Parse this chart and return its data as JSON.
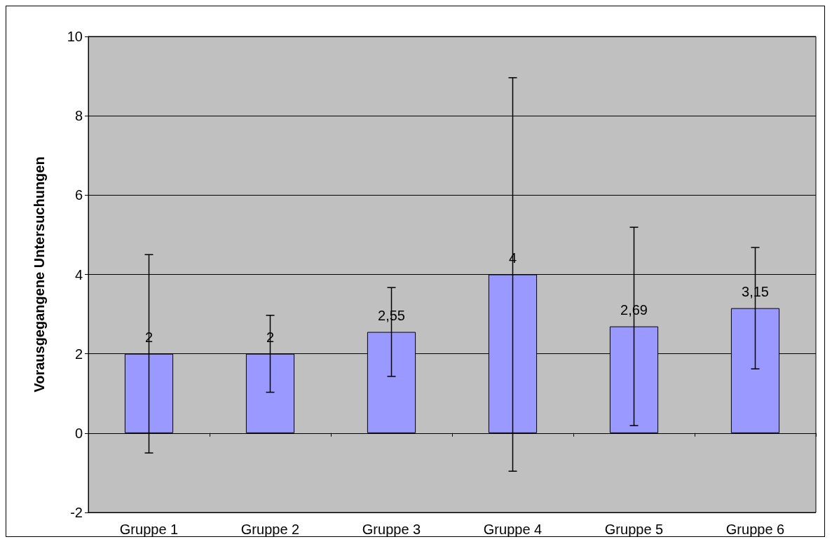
{
  "chart_data": {
    "type": "bar",
    "ylabel": "Vorausgegangene Untersuchungen",
    "categories": [
      "Gruppe 1",
      "Gruppe 2",
      "Gruppe 3",
      "Gruppe 4",
      "Gruppe 5",
      "Gruppe 6"
    ],
    "values": [
      2,
      2,
      2.55,
      4,
      2.69,
      3.15
    ],
    "errors": [
      2.5,
      0.97,
      1.12,
      4.96,
      2.5,
      1.53
    ],
    "value_labels": [
      "2",
      "2",
      "2,55",
      "4",
      "2,69",
      "3,15"
    ],
    "color": "#9999ff",
    "ylim": [
      -2,
      10
    ],
    "yticks": [
      -2,
      0,
      2,
      4,
      6,
      8,
      10
    ],
    "grid": "y"
  }
}
